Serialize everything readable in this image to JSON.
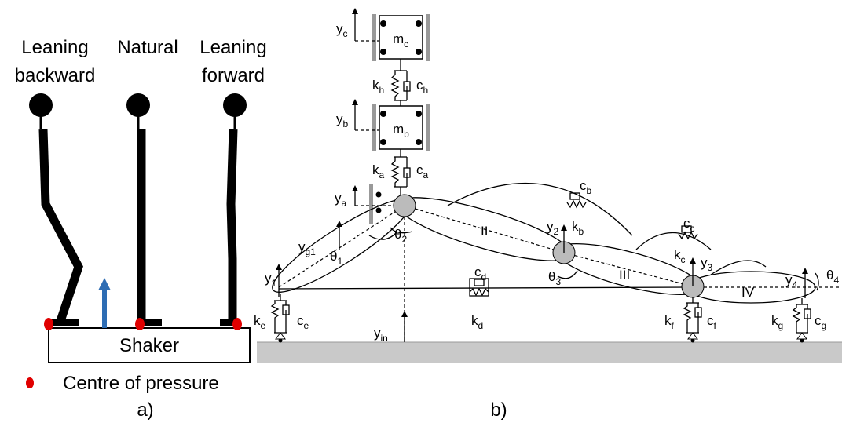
{
  "panel_a": {
    "postures": [
      {
        "lines": [
          "Leaning",
          "backward"
        ]
      },
      {
        "lines": [
          "Natural"
        ]
      },
      {
        "lines": [
          "Leaning",
          "forward"
        ]
      }
    ],
    "platform": "Shaker",
    "legend": "Centre of pressure",
    "caption": "a)"
  },
  "panel_b": {
    "caption": "b)",
    "labels": [
      {
        "base": "y",
        "sub": "c"
      },
      {
        "base": "m",
        "sub": "c"
      },
      {
        "base": "k",
        "sub": "h"
      },
      {
        "base": "c",
        "sub": "h"
      },
      {
        "base": "y",
        "sub": "b"
      },
      {
        "base": "m",
        "sub": "b"
      },
      {
        "base": "k",
        "sub": "a"
      },
      {
        "base": "c",
        "sub": "a"
      },
      {
        "base": "y",
        "sub": "a"
      },
      {
        "base": "y",
        "sub": "g1"
      },
      {
        "base": "θ",
        "sub": "1"
      },
      {
        "base": "θ",
        "sub": "2"
      },
      {
        "base": "c",
        "sub": "b"
      },
      {
        "base": "k",
        "sub": "b"
      },
      {
        "base": "y",
        "sub": "2"
      },
      {
        "base": "II"
      },
      {
        "base": "θ",
        "sub": "3"
      },
      {
        "base": "III"
      },
      {
        "base": "c",
        "sub": "c"
      },
      {
        "base": "k",
        "sub": "c"
      },
      {
        "base": "y",
        "sub": "3"
      },
      {
        "base": "y",
        "sub": "4"
      },
      {
        "base": "θ",
        "sub": "4"
      },
      {
        "base": "IV"
      },
      {
        "base": "y",
        "sub": "1"
      },
      {
        "base": "c",
        "sub": "d"
      },
      {
        "base": "k",
        "sub": "d"
      },
      {
        "base": "k",
        "sub": "e"
      },
      {
        "base": "c",
        "sub": "e"
      },
      {
        "base": "y",
        "sub": "in"
      },
      {
        "base": "k",
        "sub": "f"
      },
      {
        "base": "c",
        "sub": "f"
      },
      {
        "base": "k",
        "sub": "g"
      },
      {
        "base": "c",
        "sub": "g"
      }
    ]
  }
}
